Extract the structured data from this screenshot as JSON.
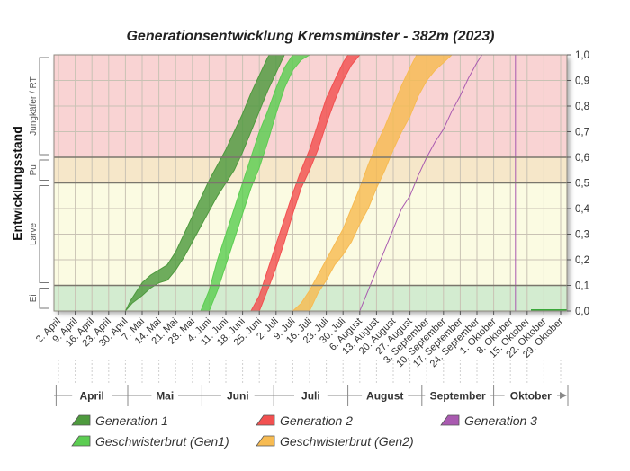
{
  "chart_data": {
    "type": "area",
    "title": "Generationsentwicklung Kremsmünster - 382m (2023)",
    "ylabel": "Entwicklungsstand",
    "ylim": [
      0,
      1
    ],
    "yticks": [
      "0,0",
      "0,1",
      "0,2",
      "0,3",
      "0,4",
      "0,5",
      "0,6",
      "0,7",
      "0,8",
      "0,9",
      "1,0"
    ],
    "stages": [
      {
        "label": "Ei",
        "from": 0.0,
        "to": 0.1,
        "color": "#d3ecd0"
      },
      {
        "label": "Larve",
        "from": 0.1,
        "to": 0.5,
        "color": "#fbfbe2"
      },
      {
        "label": "Pu",
        "from": 0.5,
        "to": 0.6,
        "color": "#f6e7c9"
      },
      {
        "label": "Jungkäfer / RT",
        "from": 0.6,
        "to": 1.0,
        "color": "#f9d3d3"
      }
    ],
    "x_dates": [
      "2. April",
      "9. April",
      "16. April",
      "23. April",
      "30. April",
      "7. Mai",
      "14. Mai",
      "21. Mai",
      "28. Mai",
      "4. Juni",
      "11. Juni",
      "18. Juni",
      "25. Juni",
      "2. Juli",
      "9. Juli",
      "16. Juli",
      "23. Juli",
      "30. Juli",
      "6. August",
      "13. August",
      "20. August",
      "27. August",
      "3. September",
      "10. September",
      "17. September",
      "24. September",
      "1. Oktober",
      "8. Oktober",
      "15. Oktober",
      "22. Oktober",
      "29. Oktober"
    ],
    "months": [
      "April",
      "Mai",
      "Juni",
      "Juli",
      "August",
      "September",
      "Oktober"
    ],
    "grid": true,
    "legend_position": "bottom",
    "series": [
      {
        "name": "Generation 1",
        "color": "#4e9a3e",
        "lower": [
          [
            0,
            0
          ],
          [
            1,
            0
          ],
          [
            2,
            0
          ],
          [
            3,
            0
          ],
          [
            4,
            0
          ],
          [
            4.4,
            0.03
          ],
          [
            5,
            0.06
          ],
          [
            5.5,
            0.09
          ],
          [
            6,
            0.11
          ],
          [
            6.5,
            0.12
          ],
          [
            7,
            0.16
          ],
          [
            7.5,
            0.21
          ],
          [
            8,
            0.27
          ],
          [
            8.5,
            0.33
          ],
          [
            9,
            0.39
          ],
          [
            9.5,
            0.45
          ],
          [
            10,
            0.5
          ],
          [
            10.5,
            0.55
          ],
          [
            11,
            0.62
          ],
          [
            11.5,
            0.7
          ],
          [
            12,
            0.78
          ],
          [
            12.5,
            0.86
          ],
          [
            13,
            0.93
          ],
          [
            13.5,
            1.0
          ]
        ],
        "upper": [
          [
            0,
            0
          ],
          [
            1,
            0
          ],
          [
            2,
            0
          ],
          [
            3,
            0
          ],
          [
            4,
            0
          ],
          [
            4.3,
            0.04
          ],
          [
            4.7,
            0.08
          ],
          [
            5,
            0.11
          ],
          [
            5.5,
            0.14
          ],
          [
            6,
            0.16
          ],
          [
            6.5,
            0.18
          ],
          [
            7,
            0.23
          ],
          [
            7.5,
            0.3
          ],
          [
            8,
            0.37
          ],
          [
            8.5,
            0.44
          ],
          [
            9,
            0.51
          ],
          [
            9.5,
            0.57
          ],
          [
            10,
            0.63
          ],
          [
            10.5,
            0.7
          ],
          [
            11,
            0.77
          ],
          [
            11.5,
            0.85
          ],
          [
            12,
            0.92
          ],
          [
            12.5,
            0.99
          ],
          [
            12.6,
            1.0
          ]
        ]
      },
      {
        "name": "Geschwisterbrut (Gen1)",
        "color": "#5ccd52",
        "lower": [
          [
            0,
            0
          ],
          [
            8.5,
            0
          ],
          [
            9,
            0
          ],
          [
            9.5,
            0.08
          ],
          [
            10,
            0.18
          ],
          [
            10.5,
            0.28
          ],
          [
            11,
            0.38
          ],
          [
            11.5,
            0.48
          ],
          [
            12,
            0.56
          ],
          [
            12.5,
            0.66
          ],
          [
            13,
            0.77
          ],
          [
            13.5,
            0.87
          ],
          [
            14,
            0.94
          ],
          [
            14.5,
            0.98
          ],
          [
            15,
            1.0
          ]
        ],
        "upper": [
          [
            0,
            0
          ],
          [
            8.5,
            0
          ],
          [
            9,
            0.08
          ],
          [
            9.5,
            0.2
          ],
          [
            10,
            0.3
          ],
          [
            10.5,
            0.4
          ],
          [
            11,
            0.5
          ],
          [
            11.5,
            0.6
          ],
          [
            12,
            0.7
          ],
          [
            12.5,
            0.78
          ],
          [
            13,
            0.87
          ],
          [
            13.5,
            0.95
          ],
          [
            14,
            1.0
          ]
        ]
      },
      {
        "name": "Generation 2",
        "color": "#f25050",
        "lower": [
          [
            0,
            0
          ],
          [
            11.5,
            0
          ],
          [
            12,
            0
          ],
          [
            12.3,
            0.05
          ],
          [
            12.6,
            0.1
          ],
          [
            13,
            0.17
          ],
          [
            13.5,
            0.27
          ],
          [
            14,
            0.38
          ],
          [
            14.5,
            0.48
          ],
          [
            15,
            0.55
          ],
          [
            15.5,
            0.63
          ],
          [
            16,
            0.73
          ],
          [
            16.5,
            0.82
          ],
          [
            17,
            0.9
          ],
          [
            17.5,
            0.96
          ],
          [
            18,
            1.0
          ]
        ],
        "upper": [
          [
            0,
            0
          ],
          [
            11.5,
            0
          ],
          [
            12,
            0.06
          ],
          [
            12.5,
            0.16
          ],
          [
            13,
            0.26
          ],
          [
            13.5,
            0.36
          ],
          [
            14,
            0.46
          ],
          [
            14.5,
            0.55
          ],
          [
            15,
            0.63
          ],
          [
            15.5,
            0.73
          ],
          [
            16,
            0.83
          ],
          [
            16.5,
            0.9
          ],
          [
            17,
            0.97
          ],
          [
            17.3,
            1.0
          ]
        ]
      },
      {
        "name": "Geschwisterbrut (Gen2)",
        "color": "#f7bb52",
        "lower": [
          [
            0,
            0
          ],
          [
            14,
            0
          ],
          [
            15,
            0
          ],
          [
            15.5,
            0.07
          ],
          [
            16,
            0.12
          ],
          [
            16.5,
            0.18
          ],
          [
            17,
            0.22
          ],
          [
            17.5,
            0.27
          ],
          [
            18,
            0.34
          ],
          [
            18.5,
            0.4
          ],
          [
            19,
            0.48
          ],
          [
            19.5,
            0.55
          ],
          [
            20,
            0.63
          ],
          [
            20.5,
            0.7
          ],
          [
            21,
            0.76
          ],
          [
            21.5,
            0.84
          ],
          [
            22,
            0.9
          ],
          [
            22.5,
            0.94
          ],
          [
            23,
            0.97
          ],
          [
            23.5,
            1.0
          ]
        ],
        "upper": [
          [
            0,
            0
          ],
          [
            14,
            0
          ],
          [
            14.5,
            0.03
          ],
          [
            15,
            0.08
          ],
          [
            15.5,
            0.14
          ],
          [
            16,
            0.2
          ],
          [
            16.5,
            0.26
          ],
          [
            17,
            0.32
          ],
          [
            17.5,
            0.4
          ],
          [
            18,
            0.48
          ],
          [
            18.5,
            0.57
          ],
          [
            19,
            0.65
          ],
          [
            19.5,
            0.72
          ],
          [
            20,
            0.8
          ],
          [
            20.5,
            0.88
          ],
          [
            21,
            0.95
          ],
          [
            21.4,
            1.0
          ]
        ]
      },
      {
        "name": "Generation 3",
        "color": "#a95ab0",
        "lower": [
          [
            0,
            0
          ],
          [
            17,
            0
          ],
          [
            18,
            0
          ],
          [
            18.5,
            0.08
          ],
          [
            19,
            0.16
          ],
          [
            19.5,
            0.24
          ],
          [
            20,
            0.32
          ],
          [
            20.5,
            0.4
          ],
          [
            21,
            0.45
          ],
          [
            21.5,
            0.53
          ],
          [
            22,
            0.6
          ],
          [
            22.5,
            0.66
          ],
          [
            23,
            0.71
          ],
          [
            23.5,
            0.78
          ],
          [
            24,
            0.84
          ],
          [
            24.5,
            0.91
          ],
          [
            25,
            0.97
          ],
          [
            25.3,
            1.0
          ],
          [
            27.3,
            1.0
          ],
          [
            27.3,
            0
          ]
        ],
        "upper": [
          [
            0,
            0
          ],
          [
            17,
            0
          ],
          [
            18,
            0
          ],
          [
            18.5,
            0.08
          ],
          [
            19,
            0.16
          ],
          [
            19.5,
            0.24
          ],
          [
            20,
            0.32
          ],
          [
            20.5,
            0.4
          ],
          [
            21,
            0.45
          ],
          [
            21.5,
            0.53
          ],
          [
            22,
            0.6
          ],
          [
            22.5,
            0.66
          ],
          [
            23,
            0.71
          ],
          [
            23.5,
            0.78
          ],
          [
            24,
            0.84
          ],
          [
            24.5,
            0.91
          ],
          [
            25,
            0.97
          ],
          [
            25.3,
            1.0
          ],
          [
            27.3,
            1.0
          ],
          [
            27.3,
            0
          ]
        ]
      }
    ],
    "legend": [
      {
        "label": "Generation 1",
        "color": "#4e9a3e"
      },
      {
        "label": "Generation 2",
        "color": "#f25050"
      },
      {
        "label": "Generation 3",
        "color": "#a95ab0"
      },
      {
        "label": "Geschwisterbrut (Gen1)",
        "color": "#5ccd52"
      },
      {
        "label": "Geschwisterbrut (Gen2)",
        "color": "#f7bb52"
      }
    ]
  }
}
